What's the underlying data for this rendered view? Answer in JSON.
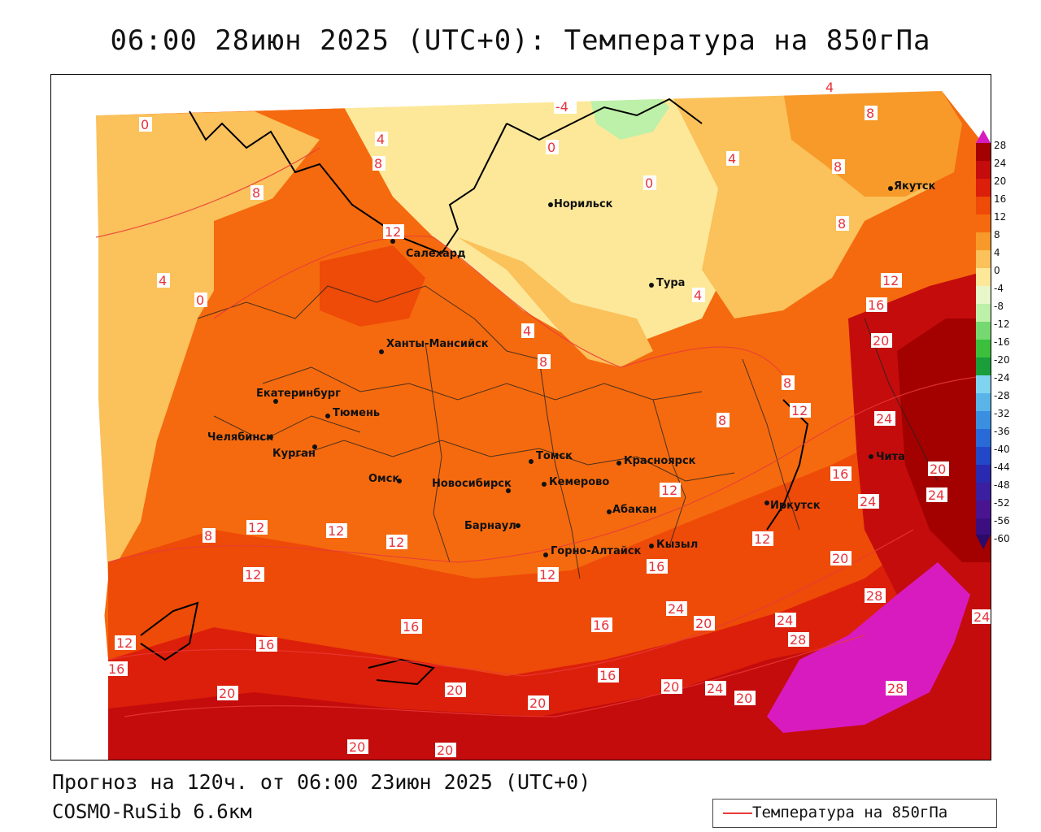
{
  "header": {
    "title": "06:00 28июн 2025 (UTC+0): Температура на 850гПа"
  },
  "footer": {
    "forecast": "Прогноз на 120ч. от 06:00 23июн 2025 (UTC+0)",
    "model": "COSMO-RuSib 6.6км"
  },
  "legend": {
    "line_label": "Температура на 850гПа",
    "line_color": "#e83a3a"
  },
  "colorbar": {
    "labels": [
      "28",
      "24",
      "20",
      "16",
      "12",
      "8",
      "4",
      "0",
      "-4",
      "-8",
      "-12",
      "-16",
      "-20",
      "-24",
      "-28",
      "-32",
      "-36",
      "-40",
      "-44",
      "-48",
      "-52",
      "-56",
      "-60"
    ],
    "colors": [
      "#a30000",
      "#c40c0c",
      "#dc1f0a",
      "#ee4a08",
      "#f56a0e",
      "#f79a2a",
      "#fbc15a",
      "#fde89a",
      "#e8f7c8",
      "#bdf0a8",
      "#76d870",
      "#3cbf3c",
      "#1a9e3a",
      "#7fd4f0",
      "#5ab4e8",
      "#3a8fe0",
      "#2a6ad8",
      "#2248c8",
      "#2a2ab0",
      "#3a1fa0",
      "#4a1490",
      "#3c0f80",
      "#2a0a6a"
    ],
    "top_color": "#d81bbf"
  },
  "cities": [
    {
      "name": "Салехард"
    },
    {
      "name": "Норильск"
    },
    {
      "name": "Якутск"
    },
    {
      "name": "Тура"
    },
    {
      "name": "Ханты-Мансийск"
    },
    {
      "name": "Екатеринбург"
    },
    {
      "name": "Тюмень"
    },
    {
      "name": "Челябинск"
    },
    {
      "name": "Курган"
    },
    {
      "name": "Омск"
    },
    {
      "name": "Новосибирск"
    },
    {
      "name": "Томск"
    },
    {
      "name": "Кемерово"
    },
    {
      "name": "Красноярск"
    },
    {
      "name": "Барнаул"
    },
    {
      "name": "Абакан"
    },
    {
      "name": "Горно-Алтайск"
    },
    {
      "name": "Кызыл"
    },
    {
      "name": "Иркутск"
    },
    {
      "name": "Чита"
    }
  ],
  "contour_labels": [
    "0",
    "4",
    "8",
    "12",
    "16",
    "20",
    "24",
    "28",
    "-4"
  ]
}
